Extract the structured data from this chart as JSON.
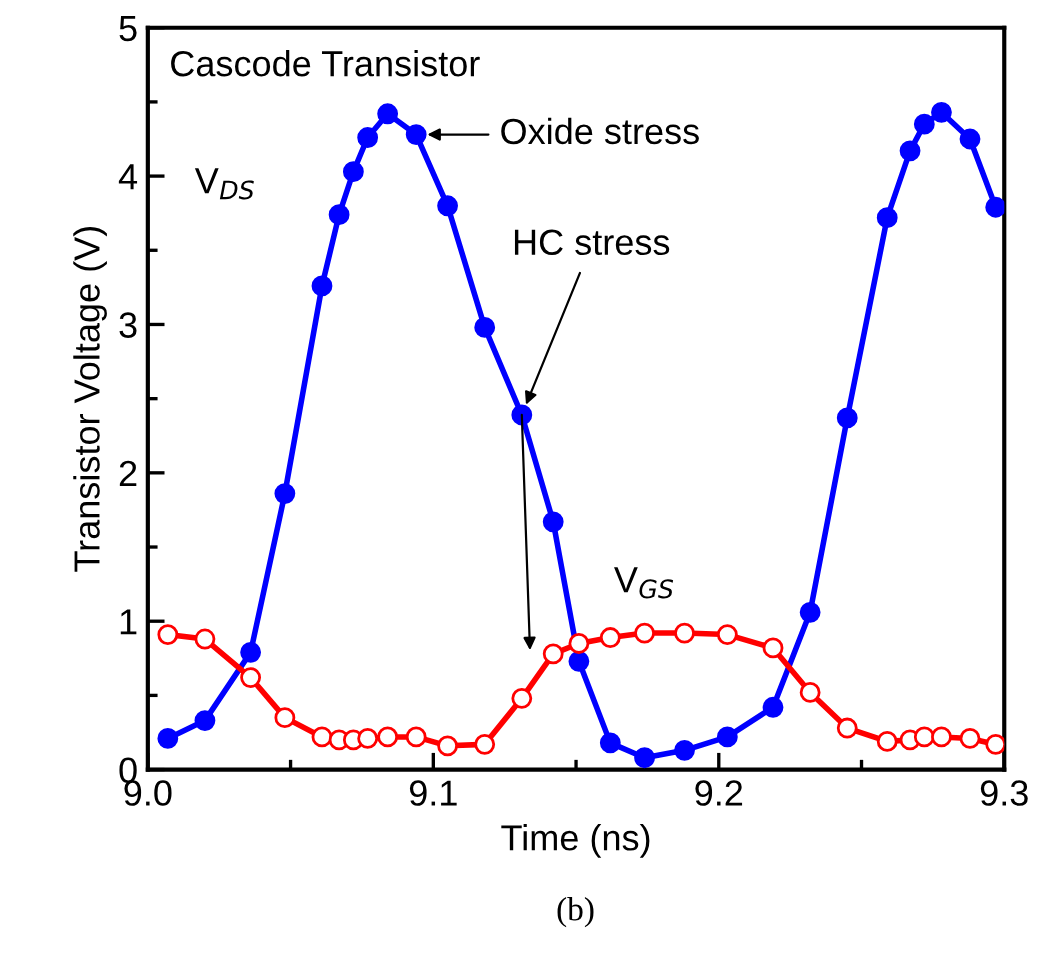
{
  "chart_data": {
    "type": "line",
    "xlabel": "Time (ns)",
    "ylabel": "Transistor Voltage (V)",
    "xlim": [
      9.0,
      9.3
    ],
    "ylim": [
      0,
      5
    ],
    "xticks": [
      {
        "value": 9.0,
        "label": "9.0"
      },
      {
        "value": 9.1,
        "label": "9.1"
      },
      {
        "value": 9.2,
        "label": "9.2"
      },
      {
        "value": 9.3,
        "label": "9.3"
      }
    ],
    "yticks": [
      0,
      1,
      2,
      3,
      4,
      5
    ],
    "grid": false,
    "legend": false,
    "line_style": "solid",
    "x": [
      9.007,
      9.02,
      9.036,
      9.048,
      9.061,
      9.067,
      9.072,
      9.077,
      9.084,
      9.094,
      9.105,
      9.118,
      9.131,
      9.142,
      9.151,
      9.162,
      9.174,
      9.188,
      9.203,
      9.219,
      9.232,
      9.245,
      9.259,
      9.267,
      9.272,
      9.278,
      9.288,
      9.297
    ],
    "series": [
      {
        "name": "V$_{DS}$",
        "color": "#0000ff",
        "marker": "circle",
        "values": [
          0.21,
          0.33,
          0.79,
          1.86,
          3.26,
          3.74,
          4.03,
          4.26,
          4.42,
          4.28,
          3.8,
          2.98,
          2.39,
          1.67,
          0.73,
          0.18,
          0.08,
          0.13,
          0.22,
          0.42,
          1.06,
          2.37,
          3.72,
          4.17,
          4.35,
          4.43,
          4.25,
          3.79
        ]
      },
      {
        "name": "V$_{GS}$",
        "color": "#ff0000",
        "marker": "circle_open",
        "values": [
          0.91,
          0.88,
          0.62,
          0.35,
          0.22,
          0.2,
          0.2,
          0.21,
          0.22,
          0.22,
          0.16,
          0.17,
          0.48,
          0.78,
          0.85,
          0.89,
          0.92,
          0.92,
          0.91,
          0.82,
          0.52,
          0.28,
          0.19,
          0.2,
          0.22,
          0.22,
          0.21,
          0.17
        ]
      }
    ],
    "annotations": [
      "Cascode Transistor",
      {
        "text": "Oxide stress",
        "x": 9.094,
        "y": 4.28
      },
      {
        "text": "HC stress",
        "x": 9.131,
        "y": 2.39
      },
      "(b)"
    ]
  }
}
